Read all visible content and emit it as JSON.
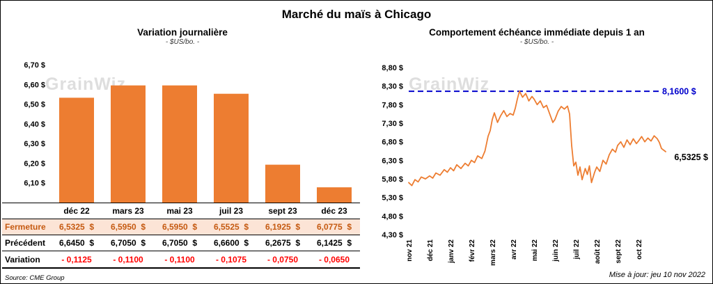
{
  "header": {
    "title": "Marché du maïs à Chicago"
  },
  "watermark": "GrainWiz",
  "footer": {
    "source": "Source: CME Group",
    "updated": "Mise à jour: jeu 10 nov 2022"
  },
  "colors": {
    "bar_orange": "#ED7D31",
    "line_orange": "#ED7D31",
    "reference_blue": "#0000CC",
    "negative_red": "#FF0000",
    "highlight_bg": "#FCE4D6",
    "highlight_text": "#C55A11"
  },
  "table": {
    "columns": [
      "déc 22",
      "mars 23",
      "mai 23",
      "juil 23",
      "sept 23",
      "déc 23"
    ],
    "rows": [
      {
        "label": "Fermeture",
        "highlight": true,
        "values": [
          "6,5325  $",
          "6,5950  $",
          "6,5950  $",
          "6,5525  $",
          "6,1925  $",
          "6,0775  $"
        ]
      },
      {
        "label": "Précédent",
        "values": [
          "6,6450  $",
          "6,7050  $",
          "6,7050  $",
          "6,6600  $",
          "6,2675  $",
          "6,1425  $"
        ]
      },
      {
        "label": "Variation",
        "negative": true,
        "values": [
          "- 0,1125",
          "- 0,1100",
          "- 0,1100",
          "- 0,1075",
          "- 0,0750",
          "- 0,0650"
        ]
      }
    ]
  },
  "chart_data": [
    {
      "type": "bar",
      "title": "Variation journalière",
      "subtitle": "- $US/bo. -",
      "categories": [
        "déc 22",
        "mars 23",
        "mai 23",
        "juil 23",
        "sept 23",
        "déc 23"
      ],
      "values": [
        6.5325,
        6.595,
        6.595,
        6.5525,
        6.1925,
        6.0775
      ],
      "ylim": [
        6.0,
        6.7
      ],
      "ytick_step": 0.1,
      "ytick_labels": [
        "6,70 $",
        "6,60 $",
        "6,50 $",
        "6,40 $",
        "6,30 $",
        "6,20 $",
        "6,10 $"
      ],
      "bar_color": "#ED7D31",
      "grid": false,
      "legend": "none"
    },
    {
      "type": "line",
      "title": "Comportement échéance immédiate depuis 1 an",
      "subtitle": "- $US/bo. -",
      "x_tick_labels": [
        "nov 21",
        "déc 21",
        "janv 22",
        "févr 22",
        "mars 22",
        "avr 22",
        "mai 22",
        "juin 22",
        "juil 22",
        "août 22",
        "sept 22",
        "oct 22"
      ],
      "ylim": [
        4.3,
        8.8
      ],
      "ytick_step": 0.5,
      "ytick_labels": [
        "8,80 $",
        "8,30 $",
        "7,80 $",
        "7,30 $",
        "6,80 $",
        "6,30 $",
        "5,80 $",
        "5,30 $",
        "4,80 $",
        "4,30 $"
      ],
      "line_color": "#ED7D31",
      "grid": false,
      "legend": "none",
      "reference_line": {
        "value": 8.16,
        "label": "8,1600 $",
        "color": "#0000CC",
        "style": "dashed"
      },
      "last_point_label": "6,5325 $",
      "last_point_value": 6.5325,
      "points": [
        [
          0.0,
          5.7
        ],
        [
          0.15,
          5.62
        ],
        [
          0.3,
          5.78
        ],
        [
          0.45,
          5.72
        ],
        [
          0.6,
          5.85
        ],
        [
          0.8,
          5.8
        ],
        [
          1.0,
          5.88
        ],
        [
          1.15,
          5.82
        ],
        [
          1.3,
          5.96
        ],
        [
          1.5,
          5.9
        ],
        [
          1.7,
          6.05
        ],
        [
          1.85,
          5.98
        ],
        [
          2.0,
          6.1
        ],
        [
          2.15,
          6.02
        ],
        [
          2.3,
          6.18
        ],
        [
          2.5,
          6.08
        ],
        [
          2.7,
          6.22
        ],
        [
          2.85,
          6.15
        ],
        [
          3.0,
          6.3
        ],
        [
          3.15,
          6.24
        ],
        [
          3.3,
          6.42
        ],
        [
          3.5,
          6.35
        ],
        [
          3.65,
          6.55
        ],
        [
          3.8,
          6.95
        ],
        [
          3.9,
          7.1
        ],
        [
          4.0,
          7.4
        ],
        [
          4.1,
          7.58
        ],
        [
          4.25,
          7.32
        ],
        [
          4.4,
          7.5
        ],
        [
          4.55,
          7.64
        ],
        [
          4.7,
          7.48
        ],
        [
          4.85,
          7.56
        ],
        [
          5.0,
          7.52
        ],
        [
          5.1,
          7.7
        ],
        [
          5.2,
          7.95
        ],
        [
          5.3,
          8.16
        ],
        [
          5.45,
          8.0
        ],
        [
          5.6,
          8.1
        ],
        [
          5.75,
          7.9
        ],
        [
          5.9,
          8.02
        ],
        [
          6.0,
          7.95
        ],
        [
          6.15,
          7.8
        ],
        [
          6.3,
          7.9
        ],
        [
          6.45,
          7.72
        ],
        [
          6.6,
          7.78
        ],
        [
          6.75,
          7.55
        ],
        [
          6.9,
          7.32
        ],
        [
          7.0,
          7.4
        ],
        [
          7.15,
          7.62
        ],
        [
          7.3,
          7.75
        ],
        [
          7.45,
          7.68
        ],
        [
          7.6,
          7.76
        ],
        [
          7.7,
          7.55
        ],
        [
          7.8,
          6.7
        ],
        [
          7.9,
          6.15
        ],
        [
          8.0,
          6.25
        ],
        [
          8.1,
          5.9
        ],
        [
          8.2,
          6.12
        ],
        [
          8.3,
          5.78
        ],
        [
          8.45,
          6.08
        ],
        [
          8.55,
          5.92
        ],
        [
          8.65,
          6.15
        ],
        [
          8.75,
          5.7
        ],
        [
          8.9,
          5.98
        ],
        [
          9.0,
          6.12
        ],
        [
          9.15,
          6.0
        ],
        [
          9.3,
          6.3
        ],
        [
          9.45,
          6.2
        ],
        [
          9.6,
          6.45
        ],
        [
          9.75,
          6.6
        ],
        [
          9.9,
          6.52
        ],
        [
          10.0,
          6.7
        ],
        [
          10.15,
          6.8
        ],
        [
          10.3,
          6.65
        ],
        [
          10.45,
          6.85
        ],
        [
          10.6,
          6.72
        ],
        [
          10.75,
          6.88
        ],
        [
          10.9,
          6.75
        ],
        [
          11.0,
          6.82
        ],
        [
          11.15,
          6.94
        ],
        [
          11.3,
          6.8
        ],
        [
          11.45,
          6.9
        ],
        [
          11.6,
          6.82
        ],
        [
          11.75,
          6.96
        ],
        [
          11.9,
          6.88
        ],
        [
          12.0,
          6.78
        ],
        [
          12.1,
          6.62
        ],
        [
          12.3,
          6.5325
        ]
      ]
    }
  ]
}
